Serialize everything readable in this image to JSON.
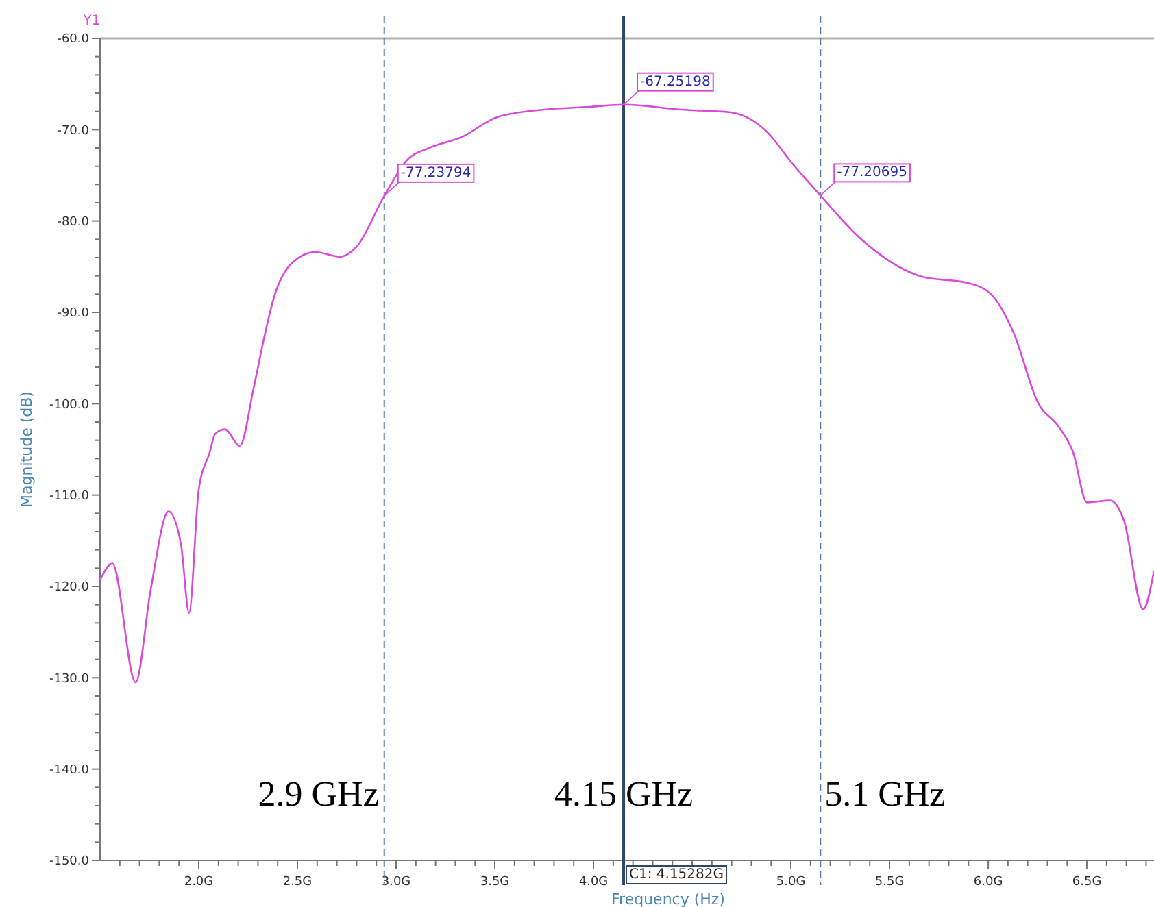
{
  "chart_data": {
    "type": "line",
    "xlabel": "Frequency (Hz)",
    "ylabel": "Magnitude (dB)",
    "x": [
      1.5,
      1.5625,
      1.68,
      1.757,
      1.847,
      1.91,
      1.951,
      2.0,
      2.056,
      2.083,
      2.132,
      2.208,
      2.278,
      2.326,
      2.382,
      2.472,
      2.59,
      2.715,
      2.8,
      2.94,
      3.056,
      3.167,
      3.333,
      3.514,
      3.75,
      3.98,
      4.15282,
      4.444,
      4.694,
      4.882,
      5.0,
      5.15,
      5.347,
      5.667,
      5.9,
      6.014,
      6.13,
      6.25,
      6.36,
      6.43,
      6.5,
      6.618,
      6.688,
      6.785,
      6.84
    ],
    "series": [
      {
        "color": "#d94ad9",
        "values": [
          -119.3,
          -117.5,
          -130.5,
          -120.3,
          -111.8,
          -115.4,
          -122.9,
          -109.4,
          -105.3,
          -103.3,
          -102.8,
          -104.6,
          -98.3,
          -93.3,
          -88.3,
          -84.6,
          -83.4,
          -83.9,
          -82.8,
          -77.23794,
          -73.3,
          -72.0,
          -70.8,
          -68.6,
          -67.8,
          -67.5,
          -67.25198,
          -67.8,
          -68.1,
          -70.3,
          -73.5,
          -77.20695,
          -81.8,
          -86.1,
          -86.8,
          -88.0,
          -92.3,
          -99.8,
          -102.6,
          -105.3,
          -110.8,
          -110.6,
          -112.8,
          -122.5,
          -118.3
        ]
      }
    ],
    "xlim": [
      1.5,
      6.84
    ],
    "ylim": [
      -150,
      -60
    ],
    "xticks": [
      {
        "value": 1.6,
        "label": null
      },
      {
        "value": 1.7,
        "label": null
      },
      {
        "value": 1.8,
        "label": null
      },
      {
        "value": 1.9,
        "label": null
      },
      {
        "value": 2.0,
        "label": "2.0G"
      },
      {
        "value": 2.1,
        "label": null
      },
      {
        "value": 2.2,
        "label": null
      },
      {
        "value": 2.3,
        "label": null
      },
      {
        "value": 2.4,
        "label": null
      },
      {
        "value": 2.5,
        "label": "2.5G"
      },
      {
        "value": 2.6,
        "label": null
      },
      {
        "value": 2.7,
        "label": null
      },
      {
        "value": 2.8,
        "label": null
      },
      {
        "value": 2.9,
        "label": null
      },
      {
        "value": 3.0,
        "label": "3.0G"
      },
      {
        "value": 3.1,
        "label": null
      },
      {
        "value": 3.2,
        "label": null
      },
      {
        "value": 3.3,
        "label": null
      },
      {
        "value": 3.4,
        "label": null
      },
      {
        "value": 3.5,
        "label": "3.5G"
      },
      {
        "value": 3.6,
        "label": null
      },
      {
        "value": 3.7,
        "label": null
      },
      {
        "value": 3.8,
        "label": null
      },
      {
        "value": 3.9,
        "label": null
      },
      {
        "value": 4.0,
        "label": "4.0G"
      },
      {
        "value": 4.1,
        "label": null
      },
      {
        "value": 4.2,
        "label": null
      },
      {
        "value": 4.3,
        "label": null
      },
      {
        "value": 4.4,
        "label": null
      },
      {
        "value": 4.5,
        "label": null
      },
      {
        "value": 4.6,
        "label": null
      },
      {
        "value": 4.7,
        "label": null
      },
      {
        "value": 4.8,
        "label": null
      },
      {
        "value": 4.9,
        "label": null
      },
      {
        "value": 5.0,
        "label": "5.0G"
      },
      {
        "value": 5.1,
        "label": null
      },
      {
        "value": 5.2,
        "label": null
      },
      {
        "value": 5.3,
        "label": null
      },
      {
        "value": 5.4,
        "label": null
      },
      {
        "value": 5.5,
        "label": "5.5G"
      },
      {
        "value": 5.6,
        "label": null
      },
      {
        "value": 5.7,
        "label": null
      },
      {
        "value": 5.8,
        "label": null
      },
      {
        "value": 5.9,
        "label": null
      },
      {
        "value": 6.0,
        "label": "6.0G"
      },
      {
        "value": 6.1,
        "label": null
      },
      {
        "value": 6.2,
        "label": null
      },
      {
        "value": 6.3,
        "label": null
      },
      {
        "value": 6.4,
        "label": null
      },
      {
        "value": 6.5,
        "label": "6.5G"
      },
      {
        "value": 6.6,
        "label": null
      },
      {
        "value": 6.7,
        "label": null
      },
      {
        "value": 6.8,
        "label": null
      }
    ],
    "yticks": [
      {
        "value": -150,
        "label": "-150.0"
      },
      {
        "value": -148,
        "label": null
      },
      {
        "value": -146,
        "label": null
      },
      {
        "value": -144,
        "label": null
      },
      {
        "value": -142,
        "label": null
      },
      {
        "value": -140,
        "label": "-140.0"
      },
      {
        "value": -138,
        "label": null
      },
      {
        "value": -136,
        "label": null
      },
      {
        "value": -134,
        "label": null
      },
      {
        "value": -132,
        "label": null
      },
      {
        "value": -130,
        "label": "-130.0"
      },
      {
        "value": -128,
        "label": null
      },
      {
        "value": -126,
        "label": null
      },
      {
        "value": -124,
        "label": null
      },
      {
        "value": -122,
        "label": null
      },
      {
        "value": -120,
        "label": "-120.0"
      },
      {
        "value": -118,
        "label": null
      },
      {
        "value": -116,
        "label": null
      },
      {
        "value": -114,
        "label": null
      },
      {
        "value": -112,
        "label": null
      },
      {
        "value": -110,
        "label": "-110.0"
      },
      {
        "value": -108,
        "label": null
      },
      {
        "value": -106,
        "label": null
      },
      {
        "value": -104,
        "label": null
      },
      {
        "value": -102,
        "label": null
      },
      {
        "value": -100,
        "label": "-100.0"
      },
      {
        "value": -98,
        "label": null
      },
      {
        "value": -96,
        "label": null
      },
      {
        "value": -94,
        "label": null
      },
      {
        "value": -92,
        "label": null
      },
      {
        "value": -90,
        "label": "-90.0"
      },
      {
        "value": -88,
        "label": null
      },
      {
        "value": -86,
        "label": null
      },
      {
        "value": -84,
        "label": null
      },
      {
        "value": -82,
        "label": null
      },
      {
        "value": -80,
        "label": "-80.0"
      },
      {
        "value": -78,
        "label": null
      },
      {
        "value": -76,
        "label": null
      },
      {
        "value": -74,
        "label": null
      },
      {
        "value": -72,
        "label": null
      },
      {
        "value": -70,
        "label": "-70.0"
      },
      {
        "value": -68,
        "label": null
      },
      {
        "value": -66,
        "label": null
      },
      {
        "value": -64,
        "label": null
      },
      {
        "value": -62,
        "label": null
      },
      {
        "value": -60,
        "label": "-60.0"
      }
    ],
    "grid": false,
    "marker": "none",
    "line_style": "solid",
    "ref_lines": [
      {
        "axis": "x",
        "value": 2.94,
        "label": "2.9 GHz",
        "color": "#5b7c9c",
        "line_style": "dashed"
      },
      {
        "axis": "x",
        "value": 4.15282,
        "label": "4.15 GHz",
        "color": "#2f4866",
        "line_style": "solid"
      },
      {
        "axis": "x",
        "value": 5.15,
        "label": "5.1 GHz",
        "color": "#5b7c9c",
        "line_style": "dashed"
      }
    ],
    "annotations": [
      "Y1",
      {
        "text": "-77.23794",
        "x": 2.94,
        "y": -77.23794
      },
      {
        "text": "-67.25198",
        "x": 4.15282,
        "y": -67.25198
      },
      {
        "text": "-77.20695",
        "x": 5.15,
        "y": -77.20695
      },
      {
        "text": "C1: 4.15282G",
        "x": 4.15282,
        "y": -150
      }
    ]
  }
}
